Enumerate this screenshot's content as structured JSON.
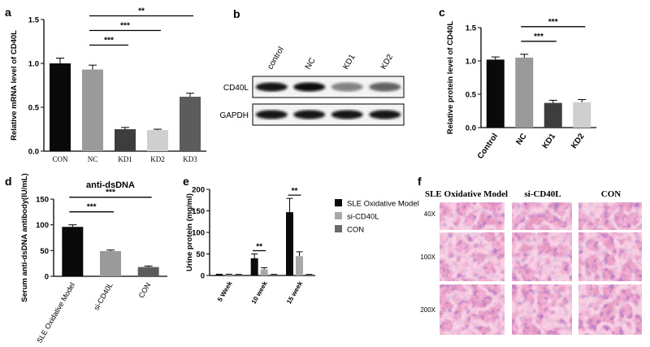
{
  "panels": [
    {
      "letter": "a"
    },
    {
      "letter": "b"
    },
    {
      "letter": "c"
    },
    {
      "letter": "d"
    },
    {
      "letter": "e"
    },
    {
      "letter": "f"
    }
  ],
  "chart_data": [
    {
      "id": "a",
      "type": "bar",
      "title": "",
      "ylabel": "Relative mRNA level of CD40L",
      "categories": [
        "CON",
        "NC",
        "KD1",
        "KD2",
        "KD3"
      ],
      "values": [
        1.0,
        0.93,
        0.25,
        0.24,
        0.62
      ],
      "errors": [
        0.06,
        0.05,
        0.02,
        0.01,
        0.04
      ],
      "colors": [
        "#0a0a0a",
        "#9a9a9a",
        "#3d3d3d",
        "#cfcfcf",
        "#5c5c5c"
      ],
      "ylim": [
        0,
        1.5
      ],
      "yticks": [
        "0.0",
        "0.5",
        "1.0",
        "1.5"
      ],
      "significance": [
        {
          "from": 1,
          "to": 2,
          "label": "***"
        },
        {
          "from": 1,
          "to": 3,
          "label": "***"
        },
        {
          "from": 1,
          "to": 4,
          "label": "**"
        }
      ]
    },
    {
      "id": "c",
      "type": "bar",
      "title": "",
      "ylabel": "Relative protein level of CD40L",
      "categories": [
        "Control",
        "NC",
        "KD1",
        "KD2"
      ],
      "values": [
        1.02,
        1.05,
        0.37,
        0.38
      ],
      "errors": [
        0.04,
        0.05,
        0.04,
        0.04
      ],
      "colors": [
        "#0a0a0a",
        "#9a9a9a",
        "#3d3d3d",
        "#cfcfcf"
      ],
      "ylim": [
        0,
        1.5
      ],
      "yticks": [
        "0.0",
        "0.5",
        "1.0",
        "1.5"
      ],
      "significance": [
        {
          "from": 1,
          "to": 2,
          "label": "***"
        },
        {
          "from": 1,
          "to": 3,
          "label": "***"
        }
      ]
    },
    {
      "id": "d",
      "type": "bar",
      "title": "anti-dsDNA",
      "ylabel": "Serum anti-dsDNA antibody(IU/mL)",
      "categories": [
        "SLE Oxidative Model",
        "si-CD40L",
        "CON"
      ],
      "values": [
        96,
        49,
        18
      ],
      "errors": [
        4,
        2,
        2
      ],
      "colors": [
        "#0a0a0a",
        "#9a9a9a",
        "#5c5c5c"
      ],
      "ylim": [
        0,
        150
      ],
      "yticks": [
        "0",
        "50",
        "100",
        "150"
      ],
      "significance": [
        {
          "from": 0,
          "to": 1,
          "label": "***"
        },
        {
          "from": 0,
          "to": 2,
          "label": "***"
        }
      ]
    },
    {
      "id": "e",
      "type": "bar",
      "title": "",
      "ylabel": "Urine protein (mg/ml)",
      "categories": [
        "5 Week",
        "10 week",
        "15 week"
      ],
      "series": [
        {
          "name": "SLE Oxidative Model",
          "color": "#0a0a0a",
          "values": [
            2,
            40,
            147
          ],
          "errors": [
            1,
            10,
            32
          ]
        },
        {
          "name": "si-CD40L",
          "color": "#a8a8a8",
          "values": [
            2,
            14,
            45
          ],
          "errors": [
            1,
            4,
            10
          ]
        },
        {
          "name": "CON",
          "color": "#6a6a6a",
          "values": [
            2,
            2,
            2
          ],
          "errors": [
            0.5,
            0.5,
            0.5
          ]
        }
      ],
      "ylim": [
        0,
        200
      ],
      "yticks": [
        "0",
        "50",
        "100",
        "150",
        "200"
      ],
      "legend": "right",
      "significance": [
        {
          "category": 1,
          "label": "**"
        },
        {
          "category": 2,
          "label": "**"
        }
      ]
    }
  ],
  "blot": {
    "headers": [
      "control",
      "NC",
      "KD1",
      "KD2"
    ],
    "rows": [
      {
        "name": "CD40L",
        "intensity": [
          0.95,
          1.0,
          0.45,
          0.6
        ]
      },
      {
        "name": "GAPDH",
        "intensity": [
          0.95,
          0.95,
          0.95,
          0.95
        ]
      }
    ]
  },
  "histology": {
    "columns": [
      "SLE Oxidative Model",
      "si-CD40L",
      "CON"
    ],
    "rows": [
      "40X",
      "100X",
      "200X"
    ]
  }
}
